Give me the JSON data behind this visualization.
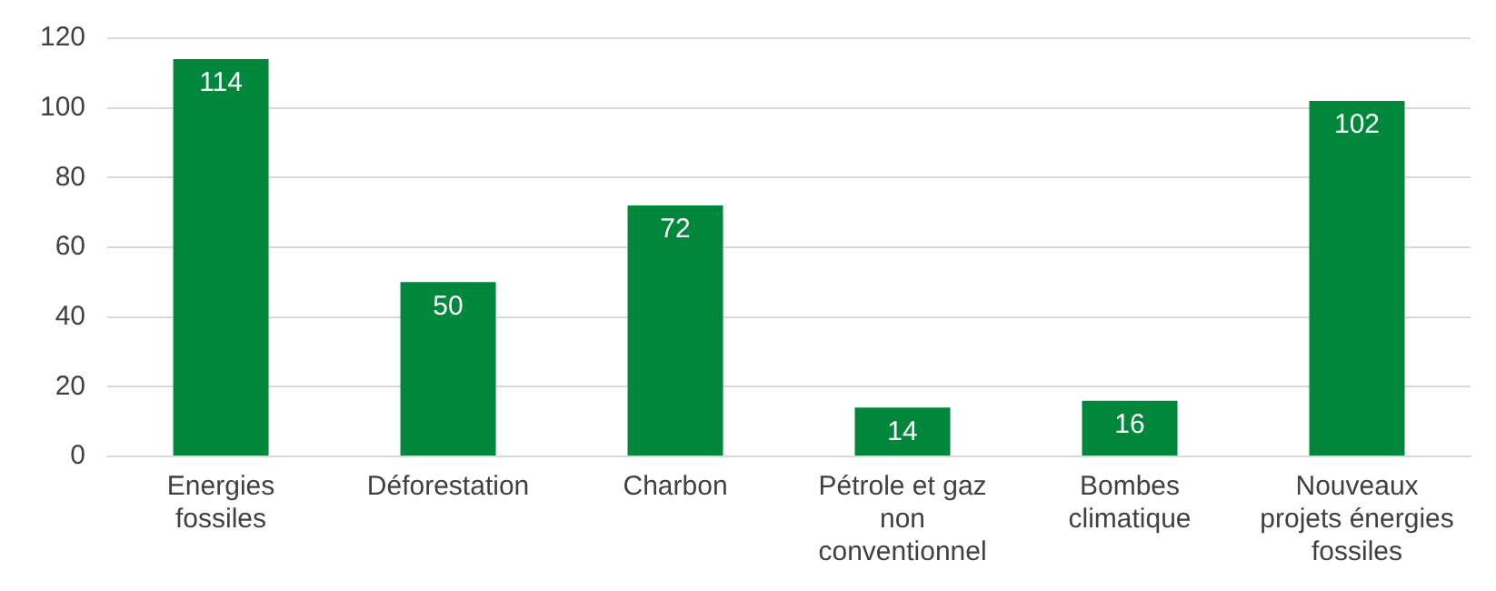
{
  "chart_data": {
    "type": "bar",
    "categories": [
      "Energies fossiles",
      "Déforestation",
      "Charbon",
      "Pétrole et gaz non conventionnel",
      "Bombes climatique",
      "Nouveaux projets énergies fossiles"
    ],
    "values": [
      114,
      50,
      72,
      14,
      16,
      102
    ],
    "color": "#00873c",
    "ylim": [
      0,
      120
    ],
    "yticks": [
      0,
      20,
      40,
      60,
      80,
      100,
      120
    ],
    "grid": "y",
    "data_labels": true
  }
}
